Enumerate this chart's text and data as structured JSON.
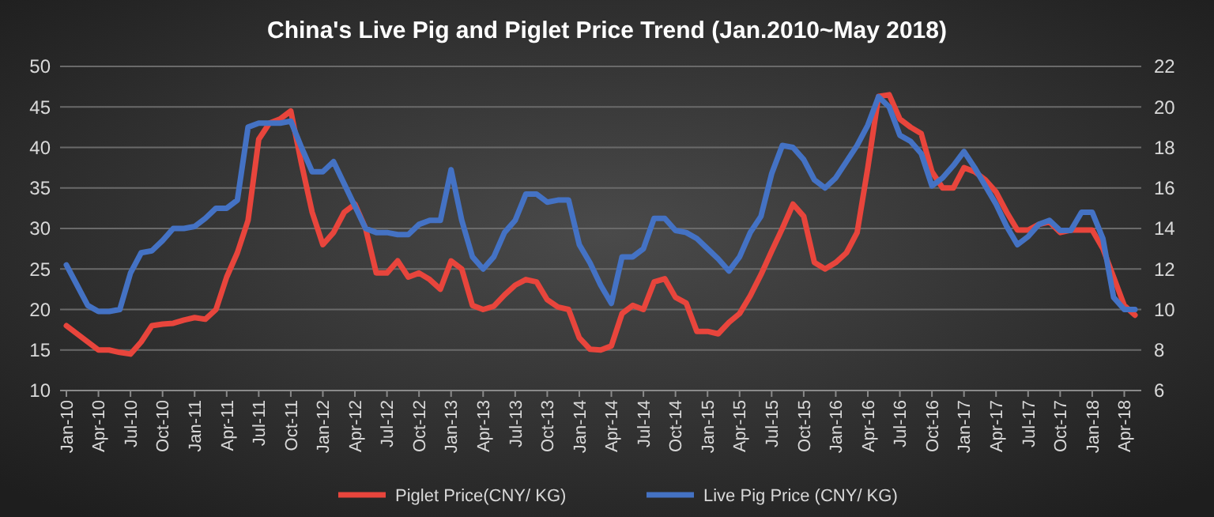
{
  "chart_data": {
    "type": "line",
    "title": "China's Live Pig and Piglet Price Trend (Jan.2010~May 2018)",
    "categories": [
      "Jan-10",
      null,
      null,
      "Apr-10",
      null,
      null,
      "Jul-10",
      null,
      null,
      "Oct-10",
      null,
      null,
      "Jan-11",
      null,
      null,
      "Apr-11",
      null,
      null,
      "Jul-11",
      null,
      null,
      "Oct-11",
      null,
      null,
      "Jan-12",
      null,
      null,
      "Apr-12",
      null,
      null,
      "Jul-12",
      null,
      null,
      "Oct-12",
      null,
      null,
      "Jan-13",
      null,
      null,
      "Apr-13",
      null,
      null,
      "Jul-13",
      null,
      null,
      "Oct-13",
      null,
      null,
      "Jan-14",
      null,
      null,
      "Apr-14",
      null,
      null,
      "Jul-14",
      null,
      null,
      "Oct-14",
      null,
      null,
      "Jan-15",
      null,
      null,
      "Apr-15",
      null,
      null,
      "Jul-15",
      null,
      null,
      "Oct-15",
      null,
      null,
      "Jan-16",
      null,
      null,
      "Apr-16",
      null,
      null,
      "Jul-16",
      null,
      null,
      "Oct-16",
      null,
      null,
      "Jan-17",
      null,
      null,
      "Apr-17",
      null,
      null,
      "Jul-17",
      null,
      null,
      "Oct-17",
      null,
      null,
      "Jan-18",
      null,
      null,
      "Apr-18",
      null
    ],
    "series": [
      {
        "name": "Piglet Price(CNY/ KG)",
        "color": "#e8453c",
        "values": [
          18,
          17,
          16,
          15,
          15,
          14.7,
          14.5,
          16,
          18,
          18.2,
          18.3,
          18.7,
          19,
          18.8,
          20,
          24,
          27,
          31,
          41,
          43,
          43.5,
          44.5,
          38,
          32,
          28,
          29.5,
          32,
          33,
          30,
          24.5,
          24.5,
          26,
          24,
          24.5,
          23.7,
          22.5,
          26,
          25,
          20.5,
          20,
          20.4,
          21.8,
          23,
          23.7,
          23.4,
          21.2,
          20.3,
          20,
          16.5,
          15.1,
          15,
          15.5,
          19.5,
          20.5,
          20,
          23.4,
          23.8,
          21.5,
          20.8,
          17.3,
          17.3,
          17,
          18.4,
          19.5,
          21.7,
          24.3,
          27.2,
          30,
          33,
          31.5,
          25.8,
          25,
          25.8,
          27,
          29.5,
          37.5,
          46.3,
          46.5,
          43.5,
          42.5,
          41.7,
          37,
          35,
          35,
          37.5,
          37,
          36,
          34.5,
          32,
          29.8,
          29.8,
          30.5,
          30.8,
          29.5,
          29.8,
          29.8,
          29.8,
          27.5,
          24,
          20.5,
          19.3
        ]
      },
      {
        "name": "Live Pig Price (CNY/ KG)",
        "color": "#4472c4",
        "axis": "y2",
        "values": [
          12.2,
          11.2,
          10.2,
          9.9,
          9.9,
          10,
          11.8,
          12.8,
          12.9,
          13.4,
          14,
          14,
          14.1,
          14.5,
          15,
          15,
          15.4,
          19,
          19.2,
          19.2,
          19.2,
          19.3,
          18,
          16.8,
          16.8,
          17.3,
          16.2,
          15.1,
          14,
          13.8,
          13.8,
          13.7,
          13.7,
          14.2,
          14.4,
          14.4,
          16.9,
          14.4,
          12.6,
          12,
          12.6,
          13.8,
          14.4,
          15.7,
          15.7,
          15.3,
          15.4,
          15.4,
          13.2,
          12.3,
          11.2,
          10.3,
          12.6,
          12.6,
          13,
          14.5,
          14.5,
          13.9,
          13.8,
          13.5,
          13,
          12.5,
          11.9,
          12.6,
          13.8,
          14.6,
          16.7,
          18.1,
          18,
          17.4,
          16.4,
          16,
          16.5,
          17.3,
          18.1,
          19.1,
          20.5,
          20,
          18.6,
          18.3,
          17.7,
          16.1,
          16.5,
          17.1,
          17.8,
          17,
          16.1,
          15.2,
          14.1,
          13.2,
          13.6,
          14.2,
          14.4,
          13.9,
          13.9,
          14.8,
          14.8,
          13.5,
          10.6,
          10,
          10
        ]
      }
    ],
    "ylim": [
      10,
      50
    ],
    "yticks": [
      10,
      15,
      20,
      25,
      30,
      35,
      40,
      45,
      50
    ],
    "y2lim": [
      6,
      22
    ],
    "y2ticks": [
      6,
      8,
      10,
      12,
      14,
      16,
      18,
      20,
      22
    ],
    "grid": "y",
    "legend": "bottom",
    "line_style": "solid",
    "marker": "none"
  }
}
